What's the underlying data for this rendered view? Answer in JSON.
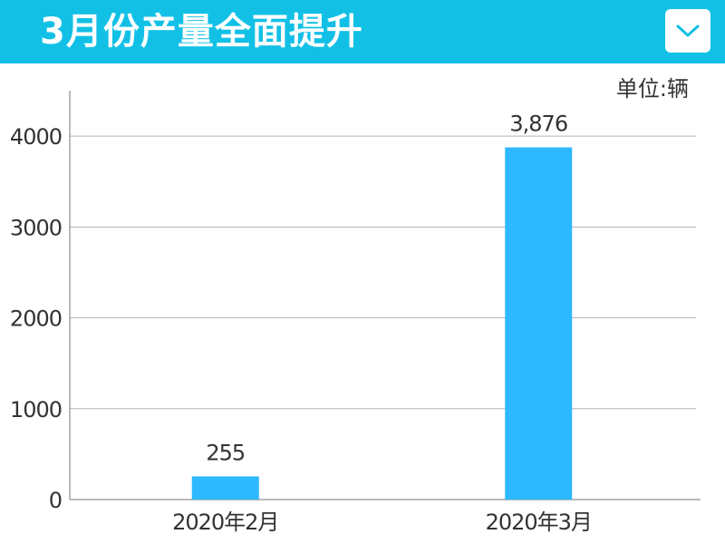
{
  "header": {
    "title": "3月份产量全面提升",
    "dropdown_icon": "chevron-down-icon",
    "background_color": "#12c0e6"
  },
  "unit_label": "单位:辆",
  "chart_data": {
    "type": "bar",
    "title": "3月份产量全面提升",
    "unit": "单位:辆",
    "categories": [
      "2020年2月",
      "2020年3月"
    ],
    "values": [
      255,
      3876
    ],
    "value_labels": [
      "255",
      "3,876"
    ],
    "ylim": [
      0,
      4500
    ],
    "yticks": [
      0,
      1000,
      2000,
      3000,
      4000
    ],
    "grid": true,
    "bar_color": "#2db8ff"
  }
}
